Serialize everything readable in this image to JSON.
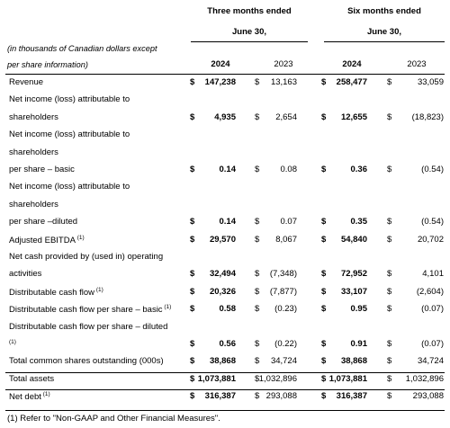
{
  "header": {
    "three_months_title": "Three months ended",
    "three_months_date": "June 30,",
    "six_months_title": "Six months ended",
    "six_months_date": "June 30,",
    "unit_note_line1": "(in thousands of Canadian dollars except",
    "unit_note_line2": "per share information)",
    "years": [
      "2024",
      "2023",
      "2024",
      "2023"
    ]
  },
  "rows": [
    {
      "label": [
        "Revenue"
      ],
      "values": [
        "147,238",
        "13,163",
        "258,477",
        "33,059"
      ]
    },
    {
      "label": [
        "Net income (loss) attributable to",
        "shareholders"
      ],
      "values": [
        "4,935",
        "2,654",
        "12,655",
        "(18,823)"
      ]
    },
    {
      "label": [
        "Net income (loss) attributable to",
        "shareholders",
        "per share – basic"
      ],
      "values": [
        "0.14",
        "0.08",
        "0.36",
        "(0.54)"
      ]
    },
    {
      "label": [
        "Net income (loss) attributable to",
        "shareholders",
        "per share –diluted"
      ],
      "values": [
        "0.14",
        "0.07",
        "0.35",
        "(0.54)"
      ]
    },
    {
      "label": [
        "Adjusted EBITDA"
      ],
      "sup": "(1)",
      "values": [
        "29,570",
        "8,067",
        "54,840",
        "20,702"
      ]
    },
    {
      "label": [
        "Net cash provided by (used in) operating",
        "activities"
      ],
      "values": [
        "32,494",
        "(7,348)",
        "72,952",
        "4,101"
      ]
    },
    {
      "label": [
        "Distributable cash flow"
      ],
      "sup": "(1)",
      "values": [
        "20,326",
        "(7,877)",
        "33,107",
        "(2,604)"
      ]
    },
    {
      "label": [
        "Distributable cash flow per share – basic"
      ],
      "sup": "(1)",
      "values": [
        "0.58",
        "(0.23)",
        "0.95",
        "(0.07)"
      ]
    },
    {
      "label": [
        "Distributable cash flow per share – diluted",
        ""
      ],
      "sup_line2": "(1)",
      "values": [
        "0.56",
        "(0.22)",
        "0.91",
        "(0.07)"
      ]
    },
    {
      "label": [
        "Total common shares outstanding (000s)"
      ],
      "values": [
        "38,868",
        "34,724",
        "38,868",
        "34,724"
      ]
    },
    {
      "label": [
        "Total assets"
      ],
      "values": [
        "1,073,881",
        "1,032,896",
        "1,073,881",
        "1,032,896"
      ]
    },
    {
      "label": [
        "Net debt"
      ],
      "sup": "(1)",
      "values": [
        "316,387",
        "293,088",
        "316,387",
        "293,088"
      ]
    }
  ],
  "currency_symbol": "$",
  "footnote": "(1)  Refer to \"Non-GAAP and Other Financial Measures\"."
}
